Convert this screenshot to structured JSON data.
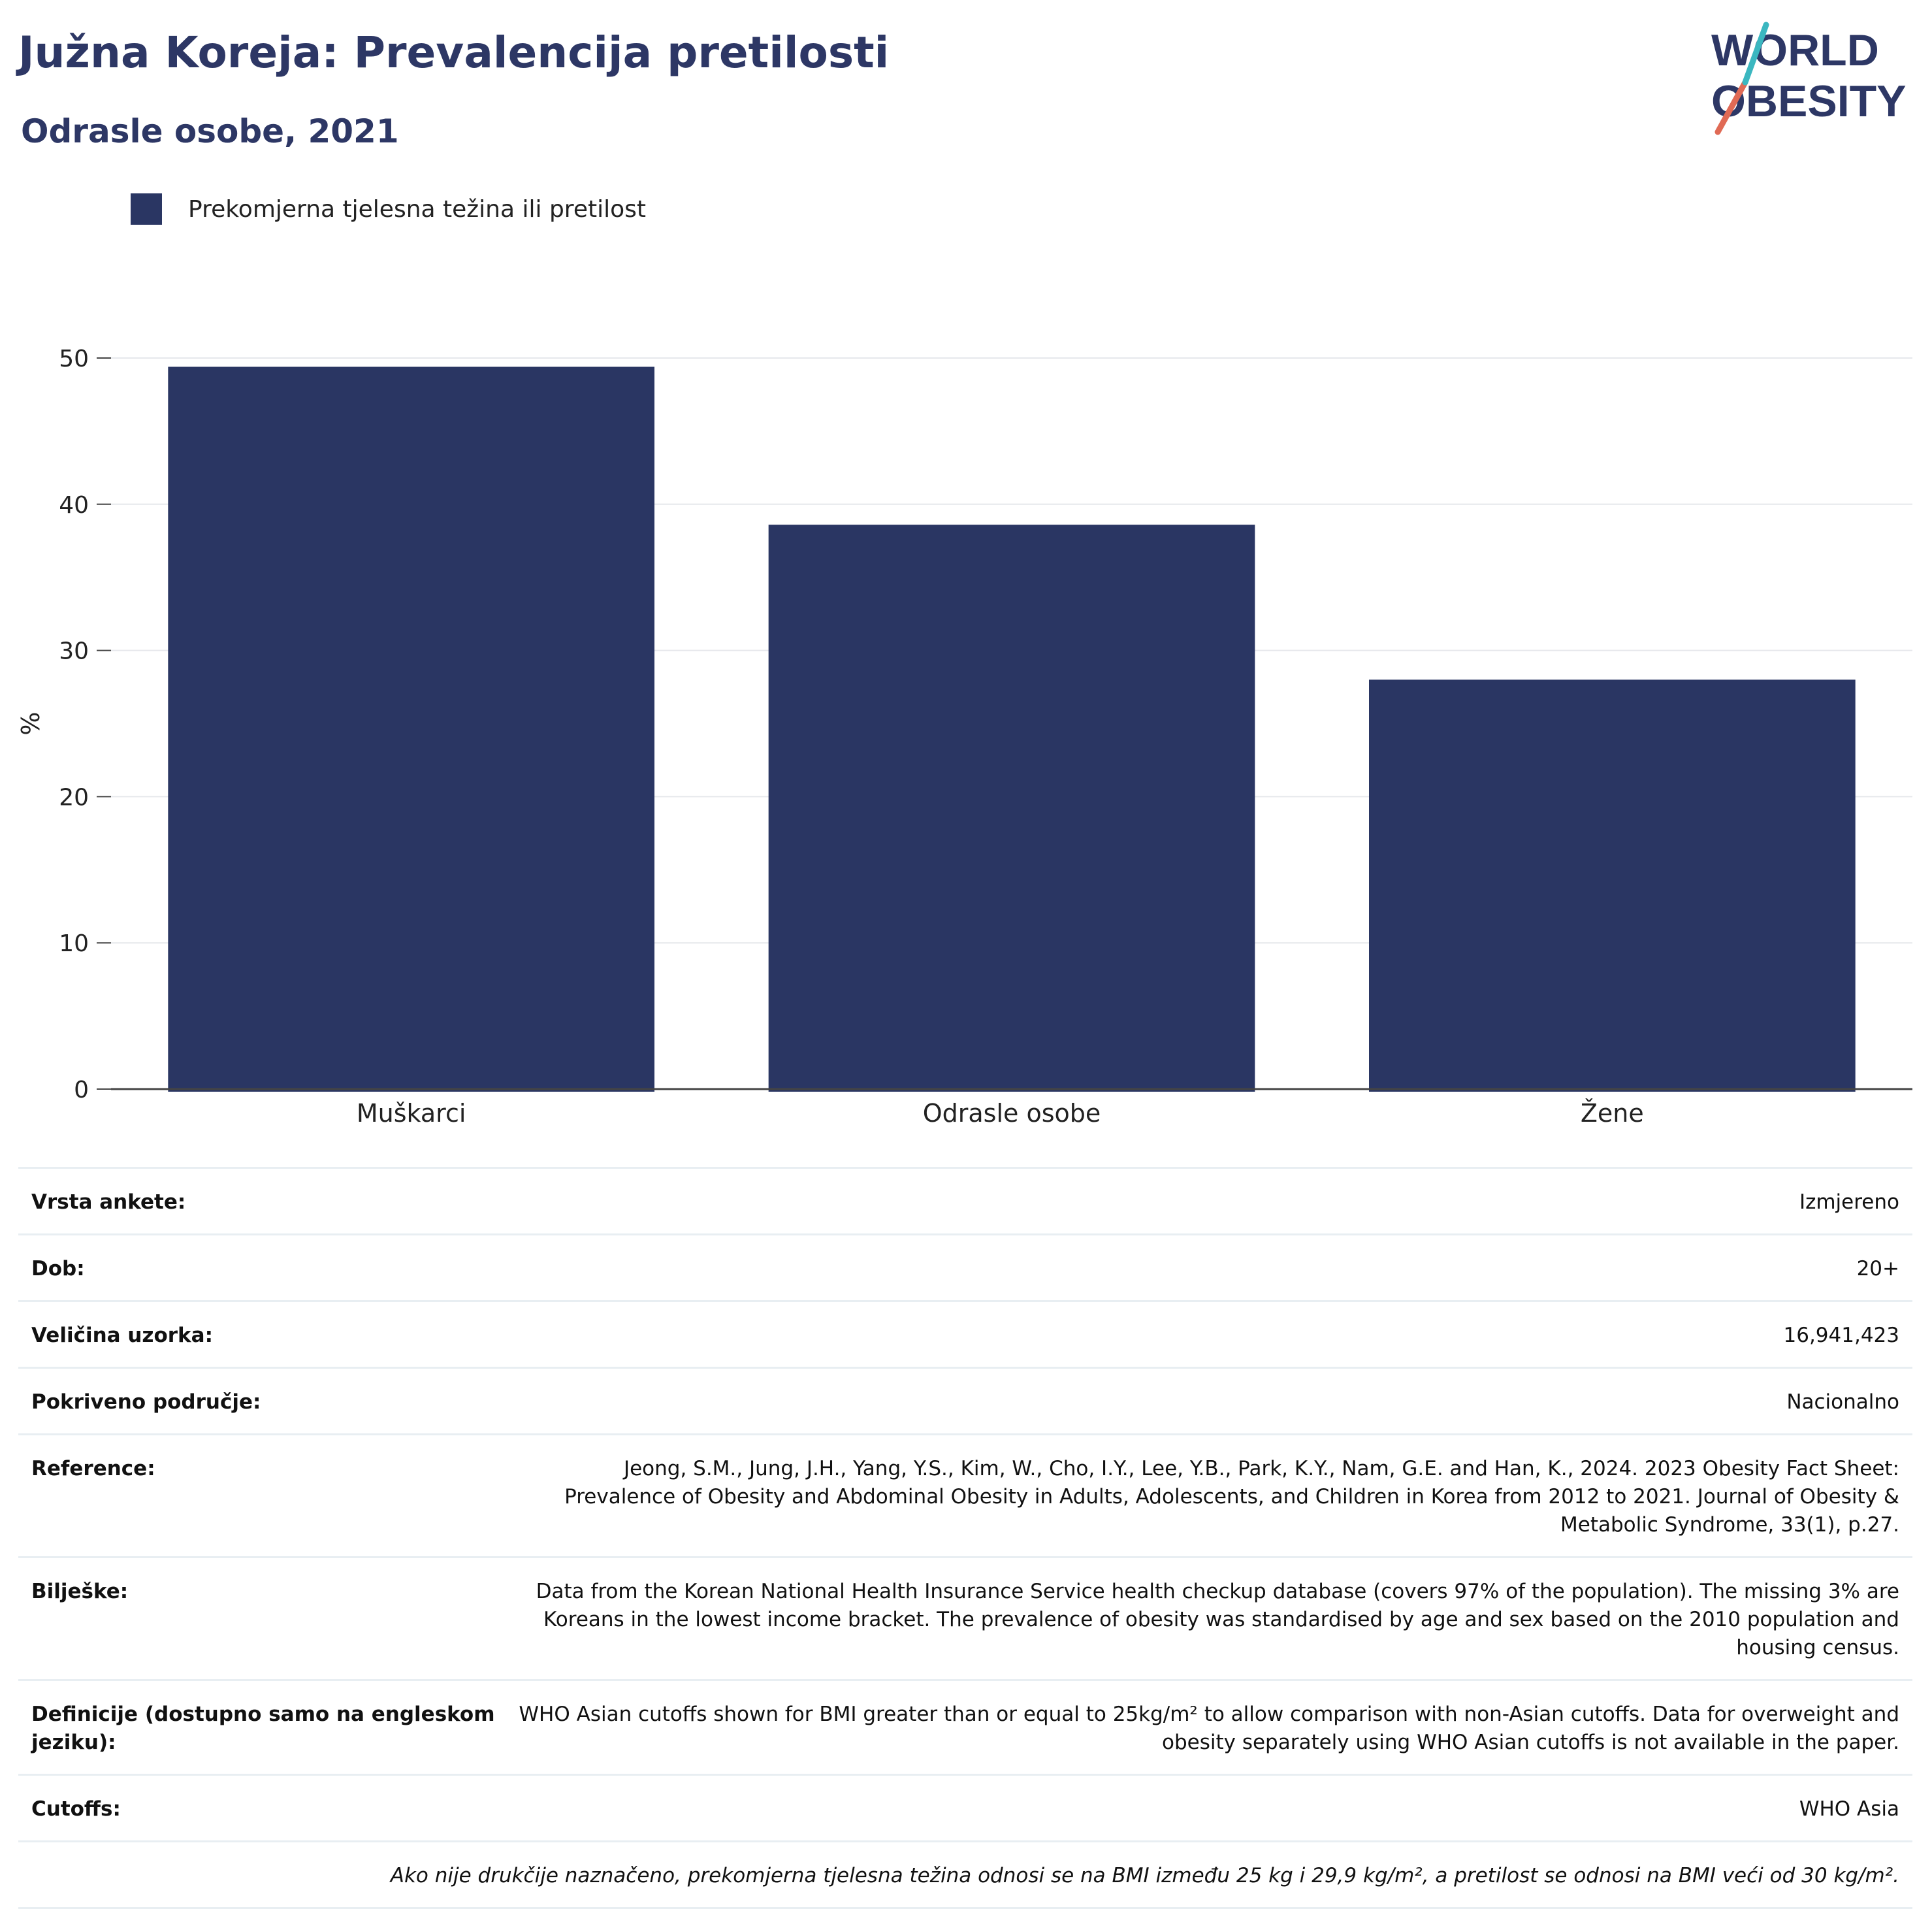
{
  "header": {
    "title": "Južna Koreja: Prevalencija pretilosti",
    "subtitle": "Odrasle osobe, 2021",
    "logo_line1": "WORLD",
    "logo_line2": "OBESITY"
  },
  "legend": {
    "label": "Prekomjerna tjelesna težina ili pretilost",
    "color": "#2a3663"
  },
  "chart_data": {
    "type": "bar",
    "categories": [
      "Muškarci",
      "Odrasle osobe",
      "Žene"
    ],
    "series": [
      {
        "name": "Prekomjerna tjelesna težina ili pretilost",
        "values": [
          49.4,
          38.6,
          28.0
        ],
        "color": "#2a3663"
      }
    ],
    "ylabel": "%",
    "ylim": [
      0,
      50
    ],
    "yticks": [
      0,
      10,
      20,
      30,
      40,
      50
    ],
    "grid": true,
    "legend_position": "top-left"
  },
  "info": {
    "rows": [
      {
        "key": "Vrsta ankete:",
        "value": "Izmjereno"
      },
      {
        "key": "Dob:",
        "value": "20+"
      },
      {
        "key": "Veličina uzorka:",
        "value": "16,941,423"
      },
      {
        "key": "Pokriveno područje:",
        "value": "Nacionalno"
      },
      {
        "key": "Reference:",
        "value": "Jeong, S.M., Jung, J.H., Yang, Y.S., Kim, W., Cho, I.Y., Lee, Y.B., Park, K.Y., Nam, G.E. and Han, K., 2024. 2023 Obesity Fact Sheet: Prevalence of Obesity and Abdominal Obesity in Adults, Adolescents, and Children in Korea from 2012 to 2021. Journal of Obesity & Metabolic Syndrome, 33(1), p.27."
      },
      {
        "key": "Bilješke:",
        "value": "Data from the Korean National Health Insurance Service health checkup database (covers 97% of the population). The missing 3% are Koreans in the lowest income bracket. The prevalence of obesity was standardised by age and sex based on the 2010 population and housing census."
      },
      {
        "key": "Definicije (dostupno samo na engleskom jeziku):",
        "value": "WHO Asian cutoffs shown for BMI greater than or equal to 25kg/m² to allow comparison with non-Asian cutoffs. Data for overweight and obesity separately using WHO Asian cutoffs is not available in the paper."
      },
      {
        "key": "Cutoffs:",
        "value": "WHO Asia"
      }
    ],
    "footnote": "Ako nije drukčije naznačeno, prekomjerna tjelesna težina odnosi se na BMI između 25 kg i 29,9 kg/m², a pretilost se odnosi na BMI veći od 30 kg/m²."
  }
}
